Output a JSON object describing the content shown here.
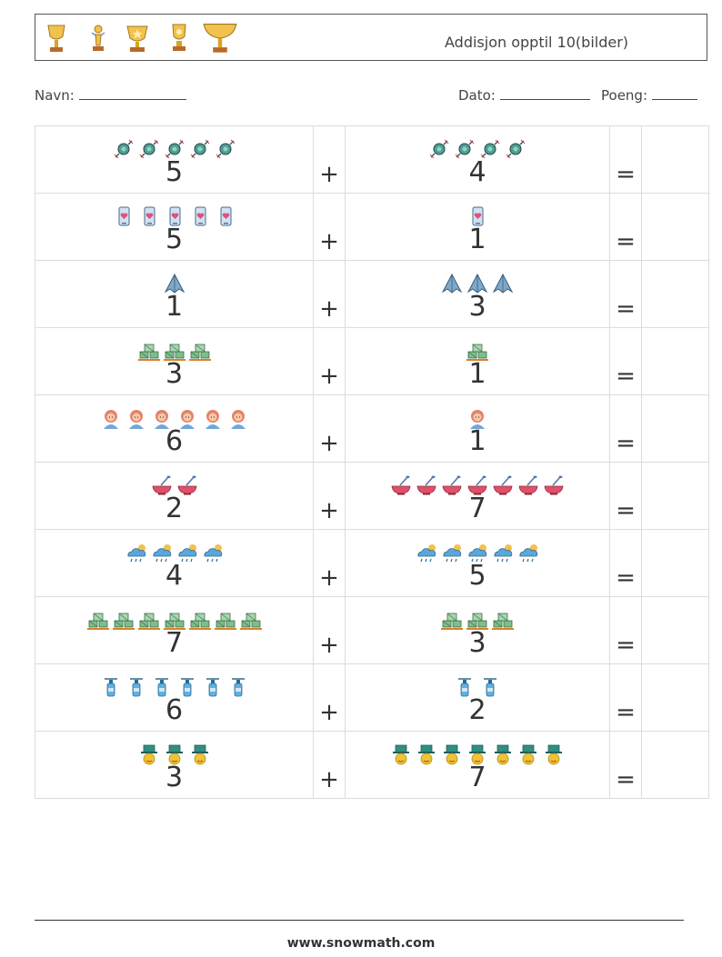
{
  "header": {
    "title": "Addisjon opptil 10(bilder)",
    "trophies": [
      "trophy-cup-icon",
      "trophy-figure-icon",
      "trophy-star-icon",
      "trophy-vase-icon",
      "trophy-chalice-icon"
    ]
  },
  "info": {
    "name_label": "Navn:",
    "date_label": "Dato:",
    "score_label": "Poeng:"
  },
  "problems": [
    {
      "a": "5",
      "b": "4",
      "icon": "candy"
    },
    {
      "a": "5",
      "b": "1",
      "icon": "phone-heart"
    },
    {
      "a": "1",
      "b": "3",
      "icon": "cape"
    },
    {
      "a": "3",
      "b": "1",
      "icon": "crates"
    },
    {
      "a": "6",
      "b": "1",
      "icon": "girl"
    },
    {
      "a": "2",
      "b": "7",
      "icon": "bowl"
    },
    {
      "a": "4",
      "b": "5",
      "icon": "rain-cloud"
    },
    {
      "a": "7",
      "b": "3",
      "icon": "crates"
    },
    {
      "a": "6",
      "b": "2",
      "icon": "bottle"
    },
    {
      "a": "3",
      "b": "7",
      "icon": "hat-man"
    }
  ],
  "operators": {
    "plus": "+",
    "equals": "="
  },
  "footer": {
    "site": "www.snowmath.com"
  }
}
